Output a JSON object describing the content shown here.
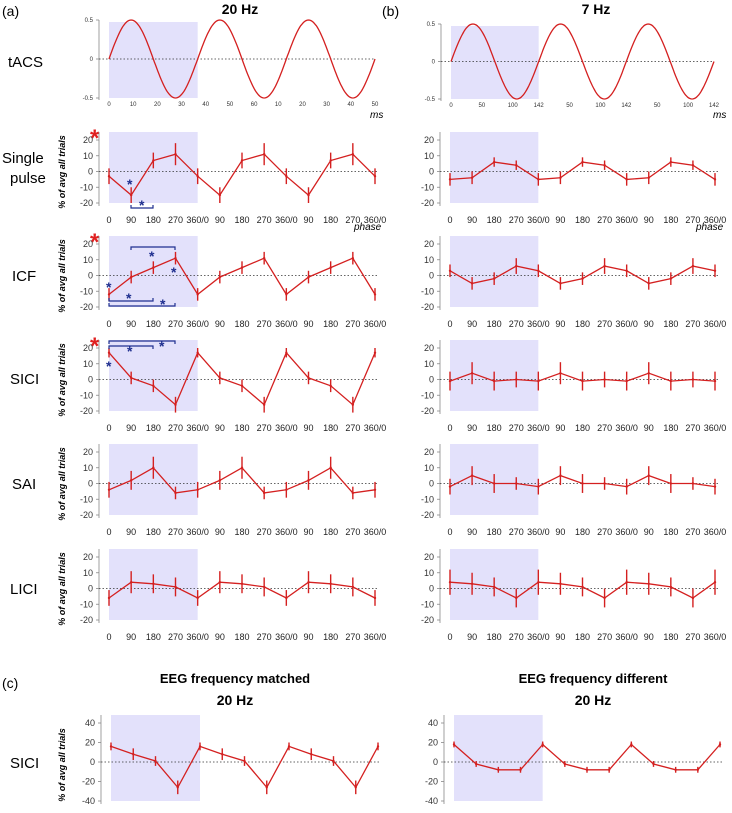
{
  "figure": {
    "panel_labels": {
      "a": "(a)",
      "b": "(b)",
      "c": "(c)"
    },
    "column_headings": {
      "a": "20 Hz",
      "b": "7 Hz"
    },
    "section_c_headings": {
      "left_line1": "EEG frequency matched",
      "left_line2": "20 Hz",
      "right_line1": "EEG frequency different",
      "right_line2": "20 Hz"
    },
    "row_labels": {
      "tacs": "tACS",
      "single_pulse_1": "Single",
      "single_pulse_2": "pulse",
      "icf": "ICF",
      "sici": "SICI",
      "sai": "SAI",
      "lici": "LICI",
      "sici_c": "SICI"
    },
    "xunit_time": "ms",
    "xunit_phase": "phase",
    "ylabel": "% of avg all trials",
    "asterisk": "*"
  },
  "colors": {
    "trace": "#d42020",
    "shade": "#e3e1fb",
    "sig_bar": "#1f2f8f",
    "red_star": "#e02020"
  },
  "chart_data": [
    {
      "id": "tacs_20",
      "type": "line",
      "title": "tACS 20 Hz",
      "xlabel": "ms",
      "ylim": [
        -0.5,
        0.5
      ],
      "yticks": [
        "0.5",
        "0",
        "-0.5"
      ],
      "xticks": [
        "0",
        "10",
        "20",
        "30",
        "40",
        "50",
        "60",
        "10",
        "20",
        "30",
        "40",
        "50"
      ],
      "cycles": 3,
      "cycle_ms": 50,
      "shaded_cycles": 1
    },
    {
      "id": "tacs_7",
      "type": "line",
      "title": "tACS 7 Hz",
      "xlabel": "ms",
      "ylim": [
        -0.5,
        0.5
      ],
      "yticks": [
        "0.5",
        "0",
        "-0.5"
      ],
      "xticks": [
        "0",
        "50",
        "100",
        "142",
        "50",
        "100",
        "142",
        "50",
        "100",
        "142"
      ],
      "cycles": 3,
      "cycle_ms": 142,
      "shaded_cycles": 1
    },
    {
      "id": "sp_20",
      "type": "line",
      "title": "Single pulse 20 Hz",
      "xlabel": "phase",
      "ylim": [
        -20,
        20
      ],
      "yticks": [
        "20",
        "10",
        "0",
        "-10",
        "-20"
      ],
      "categories": [
        "0",
        "90",
        "180",
        "270",
        "360/0",
        "90",
        "180",
        "270",
        "360/0",
        "90",
        "180",
        "270",
        "360/0"
      ],
      "values": [
        -3,
        -15,
        7,
        11,
        -3,
        -15,
        7,
        11,
        -3,
        -15,
        7,
        11,
        -3
      ],
      "errors": [
        5,
        5,
        5,
        7,
        5,
        5,
        5,
        7,
        5,
        5,
        5,
        7,
        5
      ]
    },
    {
      "id": "sp_7",
      "type": "line",
      "title": "Single pulse 7 Hz",
      "xlabel": "phase",
      "ylim": [
        -20,
        20
      ],
      "yticks": [
        "20",
        "10",
        "0",
        "-10",
        "-20"
      ],
      "categories": [
        "0",
        "90",
        "180",
        "270",
        "360/0",
        "90",
        "180",
        "270",
        "360/0",
        "90",
        "180",
        "270",
        "360/0"
      ],
      "values": [
        -5,
        -4,
        6,
        4,
        -5,
        -4,
        6,
        4,
        -5,
        -4,
        6,
        4,
        -5
      ],
      "errors": [
        4,
        4,
        3,
        3,
        4,
        4,
        3,
        3,
        4,
        4,
        3,
        3,
        4
      ]
    },
    {
      "id": "icf_20",
      "type": "line",
      "title": "ICF 20 Hz",
      "ylim": [
        -20,
        20
      ],
      "yticks": [
        "20",
        "10",
        "0",
        "-10",
        "-20"
      ],
      "categories": [
        "0",
        "90",
        "180",
        "270",
        "360/0",
        "90",
        "180",
        "270",
        "360/0",
        "90",
        "180",
        "270",
        "360/0"
      ],
      "values": [
        -12,
        -1,
        5,
        11,
        -12,
        -1,
        5,
        11,
        -12,
        -1,
        5,
        11,
        -12
      ],
      "errors": [
        4,
        4,
        4,
        4,
        4,
        4,
        4,
        4,
        4,
        4,
        4,
        4,
        4
      ]
    },
    {
      "id": "icf_7",
      "type": "line",
      "title": "ICF 7 Hz",
      "ylim": [
        -20,
        20
      ],
      "yticks": [
        "20",
        "10",
        "0",
        "-10",
        "-20"
      ],
      "categories": [
        "0",
        "90",
        "180",
        "270",
        "360/0",
        "90",
        "180",
        "270",
        "360/0",
        "90",
        "180",
        "270",
        "360/0"
      ],
      "values": [
        3,
        -5,
        -2,
        6,
        3,
        -5,
        -2,
        6,
        3,
        -5,
        -2,
        6,
        3
      ],
      "errors": [
        4,
        4,
        4,
        5,
        4,
        4,
        4,
        5,
        4,
        4,
        4,
        5,
        4
      ]
    },
    {
      "id": "sici_20",
      "type": "line",
      "title": "SICI 20 Hz",
      "ylim": [
        -20,
        20
      ],
      "yticks": [
        "20",
        "10",
        "0",
        "-10",
        "-20"
      ],
      "categories": [
        "0",
        "90",
        "180",
        "270",
        "360/0",
        "90",
        "180",
        "270",
        "360/0",
        "90",
        "180",
        "270",
        "360/0"
      ],
      "values": [
        17,
        1,
        -4,
        -16,
        17,
        1,
        -4,
        -16,
        17,
        1,
        -4,
        -16,
        17
      ],
      "errors": [
        3,
        4,
        4,
        5,
        3,
        4,
        4,
        5,
        3,
        4,
        4,
        5,
        3
      ]
    },
    {
      "id": "sici_7",
      "type": "line",
      "title": "SICI 7 Hz",
      "ylim": [
        -20,
        20
      ],
      "yticks": [
        "20",
        "10",
        "0",
        "-10",
        "-20"
      ],
      "categories": [
        "0",
        "90",
        "180",
        "270",
        "360/0",
        "90",
        "180",
        "270",
        "360/0",
        "90",
        "180",
        "270",
        "360/0"
      ],
      "values": [
        -1,
        4,
        -1,
        0,
        -1,
        4,
        -1,
        0,
        -1,
        4,
        -1,
        0,
        -1
      ],
      "errors": [
        6,
        7,
        6,
        5,
        6,
        7,
        6,
        5,
        6,
        7,
        6,
        5,
        6
      ]
    },
    {
      "id": "sai_20",
      "type": "line",
      "title": "SAI 20 Hz",
      "ylim": [
        -20,
        20
      ],
      "yticks": [
        "20",
        "10",
        "0",
        "-10",
        "-20"
      ],
      "categories": [
        "0",
        "90",
        "180",
        "270",
        "360/0",
        "90",
        "180",
        "270",
        "360/0",
        "90",
        "180",
        "270",
        "360/0"
      ],
      "values": [
        -4,
        2,
        10,
        -6,
        -4,
        2,
        10,
        -6,
        -4,
        2,
        10,
        -6,
        -4
      ],
      "errors": [
        5,
        6,
        7,
        4,
        5,
        6,
        7,
        4,
        5,
        6,
        7,
        4,
        5
      ]
    },
    {
      "id": "sai_7",
      "type": "line",
      "title": "SAI 7 Hz",
      "ylim": [
        -20,
        20
      ],
      "yticks": [
        "20",
        "10",
        "0",
        "-10",
        "-20"
      ],
      "categories": [
        "0",
        "90",
        "180",
        "270",
        "360/0",
        "90",
        "180",
        "270",
        "360/0",
        "90",
        "180",
        "270",
        "360/0"
      ],
      "values": [
        -2,
        5,
        0,
        0,
        -2,
        5,
        0,
        0,
        -2,
        5,
        0,
        0,
        -2
      ],
      "errors": [
        5,
        6,
        6,
        4,
        5,
        6,
        6,
        4,
        5,
        6,
        6,
        4,
        5
      ]
    },
    {
      "id": "lici_20",
      "type": "line",
      "title": "LICI 20 Hz",
      "ylim": [
        -20,
        20
      ],
      "yticks": [
        "20",
        "10",
        "0",
        "-10",
        "-20"
      ],
      "categories": [
        "0",
        "90",
        "180",
        "270",
        "360/0",
        "90",
        "180",
        "270",
        "360/0",
        "90",
        "180",
        "270",
        "360/0"
      ],
      "values": [
        -6,
        4,
        3,
        1,
        -6,
        4,
        3,
        1,
        -6,
        4,
        3,
        1,
        -6
      ],
      "errors": [
        5,
        7,
        6,
        6,
        5,
        7,
        6,
        6,
        5,
        7,
        6,
        6,
        5
      ]
    },
    {
      "id": "lici_7",
      "type": "line",
      "title": "LICI 7 Hz",
      "ylim": [
        -20,
        20
      ],
      "yticks": [
        "20",
        "10",
        "0",
        "-10",
        "-20"
      ],
      "categories": [
        "0",
        "90",
        "180",
        "270",
        "360/0",
        "90",
        "180",
        "270",
        "360/0",
        "90",
        "180",
        "270",
        "360/0"
      ],
      "values": [
        4,
        3,
        1,
        -6,
        4,
        3,
        1,
        -6,
        4,
        3,
        1,
        -6,
        4
      ],
      "errors": [
        8,
        7,
        6,
        6,
        8,
        7,
        6,
        6,
        8,
        7,
        6,
        6,
        8
      ]
    },
    {
      "id": "sici_c_matched",
      "type": "line",
      "title": "SICI EEG frequency matched 20 Hz",
      "ylim": [
        -40,
        40
      ],
      "yticks": [
        "40",
        "20",
        "0",
        "-20",
        "-40"
      ],
      "categories": [
        "0",
        "90",
        "180",
        "270",
        "360/0",
        "90",
        "180",
        "270",
        "360/0",
        "90",
        "180",
        "270",
        "360/0"
      ],
      "values": [
        16,
        8,
        1,
        -26,
        16,
        8,
        1,
        -26,
        16,
        8,
        1,
        -26,
        16
      ],
      "errors": [
        4,
        6,
        5,
        7,
        4,
        6,
        5,
        7,
        4,
        6,
        5,
        7,
        4
      ]
    },
    {
      "id": "sici_c_different",
      "type": "line",
      "title": "SICI EEG frequency different 20 Hz",
      "ylim": [
        -40,
        40
      ],
      "yticks": [
        "40",
        "20",
        "0",
        "-20",
        "-40"
      ],
      "categories": [
        "0",
        "90",
        "180",
        "270",
        "360/0",
        "90",
        "180",
        "270",
        "360/0",
        "90",
        "180",
        "270",
        "360/0"
      ],
      "values": [
        18,
        -2,
        -8,
        -8,
        18,
        -2,
        -8,
        -8,
        18,
        -2,
        -8,
        -8,
        18
      ],
      "errors": [
        3,
        3,
        3,
        3,
        3,
        3,
        3,
        3,
        3,
        3,
        3,
        3,
        3
      ]
    }
  ]
}
